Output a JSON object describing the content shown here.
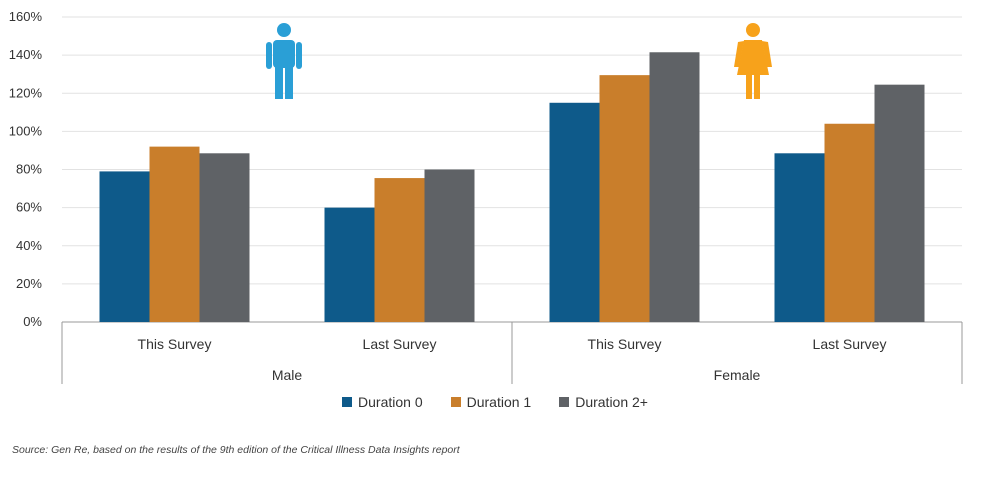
{
  "chart_data": {
    "type": "bar",
    "groups": [
      {
        "label": "Male",
        "categories": [
          "This Survey",
          "Last Survey"
        ],
        "icon": "male-icon",
        "icon_color": "#2a9fd6"
      },
      {
        "label": "Female",
        "categories": [
          "This Survey",
          "Last Survey"
        ],
        "icon": "female-icon",
        "icon_color": "#f7a21b"
      }
    ],
    "categories": [
      "This Survey",
      "Last Survey",
      "This Survey",
      "Last Survey"
    ],
    "series": [
      {
        "name": "Duration 0",
        "color": "#0e5a8a",
        "values": [
          79,
          60,
          115,
          88.5
        ]
      },
      {
        "name": "Duration 1",
        "color": "#c97e2b",
        "values": [
          92,
          75.5,
          129.5,
          104
        ]
      },
      {
        "name": "Duration 2+",
        "color": "#5f6266",
        "values": [
          88.5,
          80,
          141.5,
          124.5
        ]
      }
    ],
    "ylim": [
      0,
      160
    ],
    "yticks": [
      0,
      20,
      40,
      60,
      80,
      100,
      120,
      140,
      160
    ],
    "ytick_labels": [
      "0%",
      "20%",
      "40%",
      "60%",
      "80%",
      "100%",
      "120%",
      "140%",
      "160%"
    ],
    "grid": true,
    "legend_position": "bottom-center"
  },
  "source_note": "Source: Gen Re, based on the results of the 9th edition of the Critical Illness Data Insights report"
}
